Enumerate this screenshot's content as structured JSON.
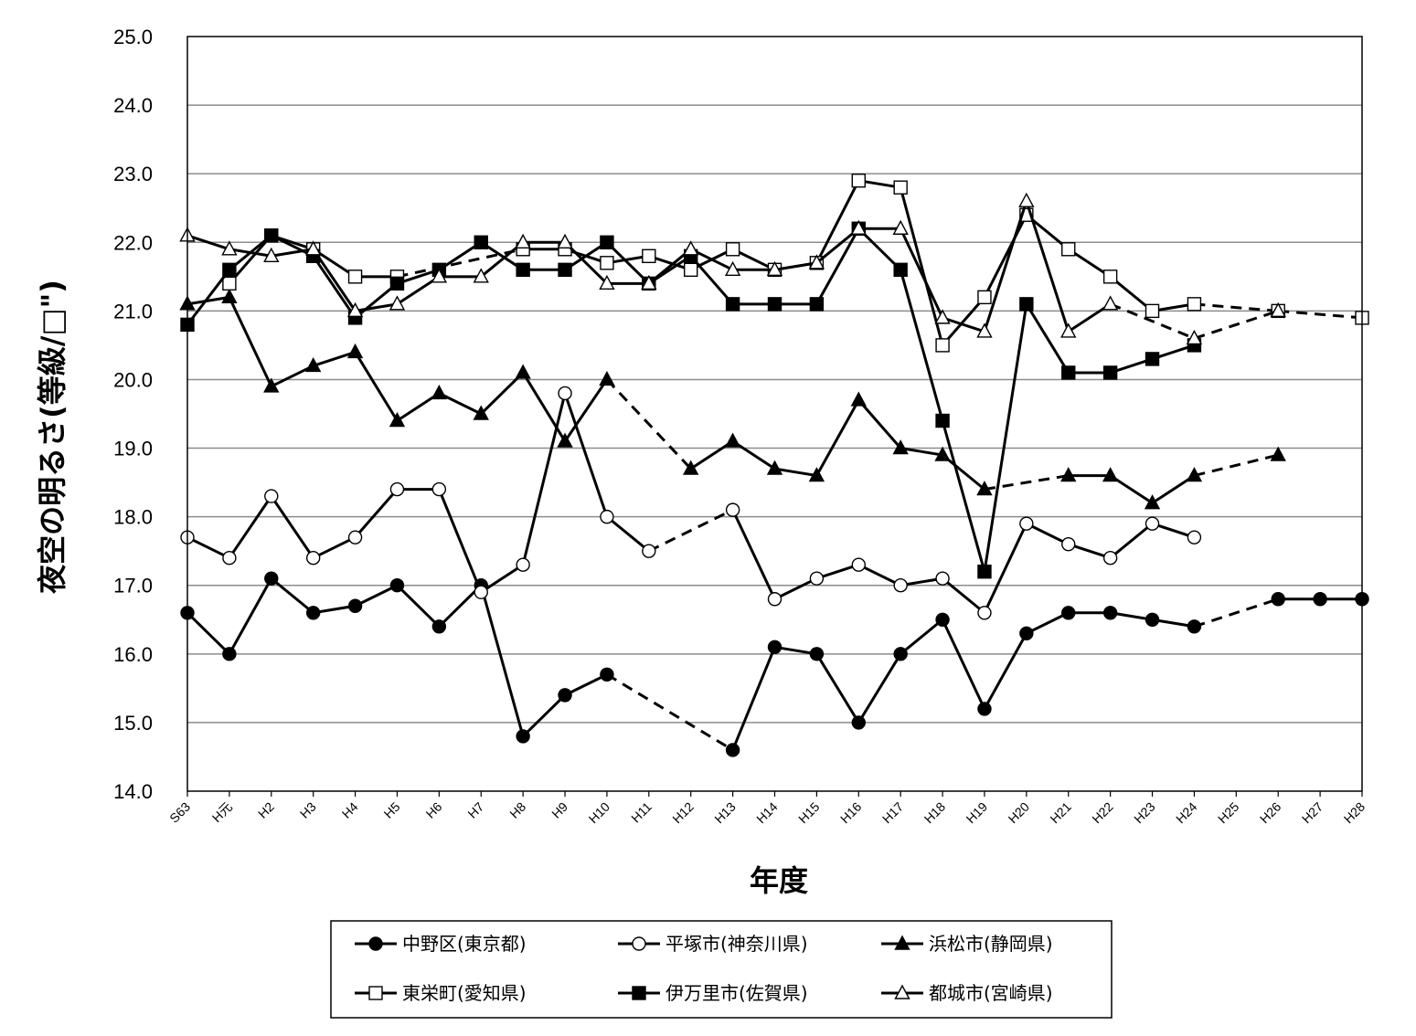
{
  "chart_data": {
    "type": "line",
    "xlabel": "年度",
    "ylabel": "夜空の明るさ(等級/□\")",
    "ylim": [
      14.0,
      25.0
    ],
    "yticks": [
      "14.0",
      "15.0",
      "16.0",
      "17.0",
      "18.0",
      "19.0",
      "20.0",
      "21.0",
      "22.0",
      "23.0",
      "24.0",
      "25.0"
    ],
    "categories": [
      "S63",
      "H元",
      "H2",
      "H3",
      "H4",
      "H5",
      "H6",
      "H7",
      "H8",
      "H9",
      "H10",
      "H11",
      "H12",
      "H13",
      "H14",
      "H15",
      "H16",
      "H17",
      "H18",
      "H19",
      "H20",
      "H21",
      "H22",
      "H23",
      "H24",
      "H25",
      "H26",
      "H27",
      "H28"
    ],
    "grid": true,
    "legend_position": "bottom",
    "series": [
      {
        "name": "中野区(東京都)",
        "marker": "circle",
        "fill": "black",
        "values": [
          16.6,
          16.0,
          17.1,
          16.6,
          16.7,
          17.0,
          16.4,
          17.0,
          14.8,
          15.4,
          15.7,
          null,
          null,
          14.6,
          16.1,
          16.0,
          15.0,
          16.0,
          16.5,
          15.2,
          16.3,
          16.6,
          16.6,
          16.5,
          16.4,
          null,
          16.8,
          16.8,
          16.8
        ]
      },
      {
        "name": "平塚市(神奈川県)",
        "marker": "circle",
        "fill": "white",
        "values": [
          17.7,
          17.4,
          18.3,
          17.4,
          17.7,
          18.4,
          18.4,
          16.9,
          17.3,
          19.8,
          18.0,
          17.5,
          null,
          18.1,
          16.8,
          17.1,
          17.3,
          17.0,
          17.1,
          16.6,
          17.9,
          17.6,
          17.4,
          17.9,
          17.7,
          null,
          null,
          null,
          null
        ]
      },
      {
        "name": "浜松市(静岡県)",
        "marker": "triangle",
        "fill": "black",
        "values": [
          21.1,
          21.2,
          19.9,
          20.2,
          20.4,
          19.4,
          19.8,
          19.5,
          20.1,
          19.1,
          20.0,
          null,
          18.7,
          19.1,
          18.7,
          18.6,
          19.7,
          19.0,
          18.9,
          18.4,
          null,
          18.6,
          18.6,
          18.2,
          18.6,
          null,
          18.9,
          null,
          null
        ]
      },
      {
        "name": "東栄町(愛知県)",
        "marker": "square",
        "fill": "white",
        "values": [
          null,
          21.4,
          22.1,
          21.9,
          21.5,
          21.5,
          null,
          null,
          21.9,
          21.9,
          21.7,
          21.8,
          21.6,
          21.9,
          21.6,
          21.7,
          22.9,
          22.8,
          20.5,
          21.2,
          22.4,
          21.9,
          21.5,
          21.0,
          21.1,
          null,
          21.0,
          null,
          20.9
        ]
      },
      {
        "name": "伊万里市(佐賀県)",
        "marker": "square",
        "fill": "black",
        "values": [
          20.8,
          21.6,
          22.1,
          21.8,
          20.9,
          21.4,
          21.6,
          22.0,
          21.6,
          21.6,
          22.0,
          21.4,
          21.8,
          21.1,
          21.1,
          21.1,
          22.2,
          21.6,
          19.4,
          17.2,
          21.1,
          20.1,
          20.1,
          20.3,
          20.5,
          null,
          null,
          null,
          null
        ]
      },
      {
        "name": "都城市(宮崎県)",
        "marker": "triangle",
        "fill": "white",
        "values": [
          22.1,
          21.9,
          21.8,
          21.9,
          21.0,
          21.1,
          21.5,
          21.5,
          22.0,
          22.0,
          21.4,
          21.4,
          21.9,
          21.6,
          21.6,
          21.7,
          22.2,
          22.2,
          20.9,
          20.7,
          22.6,
          20.7,
          21.1,
          null,
          20.6,
          null,
          21.0,
          null,
          null
        ]
      }
    ]
  }
}
